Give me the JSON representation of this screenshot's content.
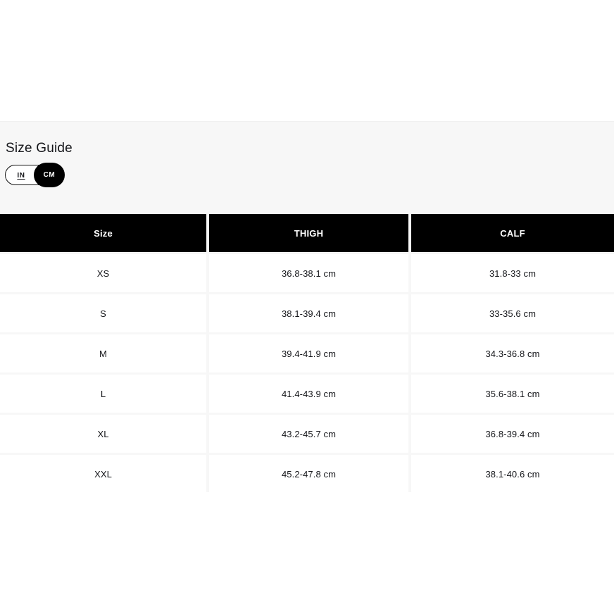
{
  "size_guide": {
    "title": "Size Guide",
    "unit_toggle": {
      "in_label": "IN",
      "cm_label": "CM",
      "selected_unit": "CM"
    },
    "table": {
      "columns": [
        "Size",
        "THIGH",
        "CALF"
      ],
      "rows": [
        {
          "size": "XS",
          "thigh": "36.8-38.1 cm",
          "calf": "31.8-33 cm"
        },
        {
          "size": "S",
          "thigh": "38.1-39.4 cm",
          "calf": "33-35.6 cm"
        },
        {
          "size": "M",
          "thigh": "39.4-41.9 cm",
          "calf": "34.3-36.8 cm"
        },
        {
          "size": "L",
          "thigh": "41.4-43.9 cm",
          "calf": "35.6-38.1 cm"
        },
        {
          "size": "XL",
          "thigh": "43.2-45.7 cm",
          "calf": "36.8-39.4 cm"
        },
        {
          "size": "XXL",
          "thigh": "45.2-47.8 cm",
          "calf": "38.1-40.6 cm"
        }
      ]
    }
  },
  "colors": {
    "section_background": "#f7f7f7",
    "header_background": "#000000",
    "header_text": "#ffffff",
    "cell_background": "#ffffff",
    "body_text": "#15161a",
    "toggle_selected_background": "#000000",
    "toggle_selected_text": "#ffffff"
  }
}
